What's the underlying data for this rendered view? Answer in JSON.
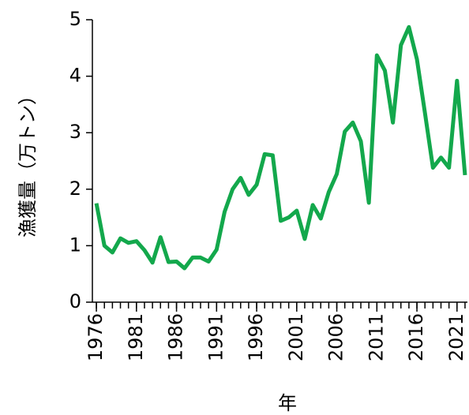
{
  "chart_data": {
    "type": "line",
    "x_label": "年",
    "y_label": "漁獲量（万トン）",
    "x": [
      1976,
      1977,
      1978,
      1979,
      1980,
      1981,
      1982,
      1983,
      1984,
      1985,
      1986,
      1987,
      1988,
      1989,
      1990,
      1991,
      1992,
      1993,
      1994,
      1995,
      1996,
      1997,
      1998,
      1999,
      2000,
      2001,
      2002,
      2003,
      2004,
      2005,
      2006,
      2007,
      2008,
      2009,
      2010,
      2011,
      2012,
      2013,
      2014,
      2015,
      2016,
      2017,
      2018,
      2019,
      2020,
      2021,
      2022
    ],
    "series": [
      {
        "color": "#13a84c",
        "values": [
          1.75,
          1.0,
          0.88,
          1.13,
          1.05,
          1.08,
          0.92,
          0.7,
          1.15,
          0.71,
          0.72,
          0.6,
          0.79,
          0.79,
          0.72,
          0.93,
          1.6,
          2.0,
          2.2,
          1.9,
          2.08,
          2.62,
          2.6,
          1.44,
          1.5,
          1.62,
          1.12,
          1.72,
          1.48,
          1.95,
          2.27,
          3.02,
          3.18,
          2.85,
          1.76,
          4.37,
          4.1,
          3.18,
          4.55,
          4.87,
          4.3,
          3.35,
          2.38,
          2.56,
          2.38,
          3.92,
          2.25
        ]
      }
    ],
    "xlim": [
      1975.5,
      2022.3
    ],
    "xticks": [
      1976,
      1981,
      1986,
      1991,
      1996,
      2001,
      2006,
      2011,
      2016,
      2021
    ],
    "ylim": [
      0,
      5
    ],
    "yticks": [
      0,
      1,
      2,
      3,
      4,
      5
    ]
  }
}
